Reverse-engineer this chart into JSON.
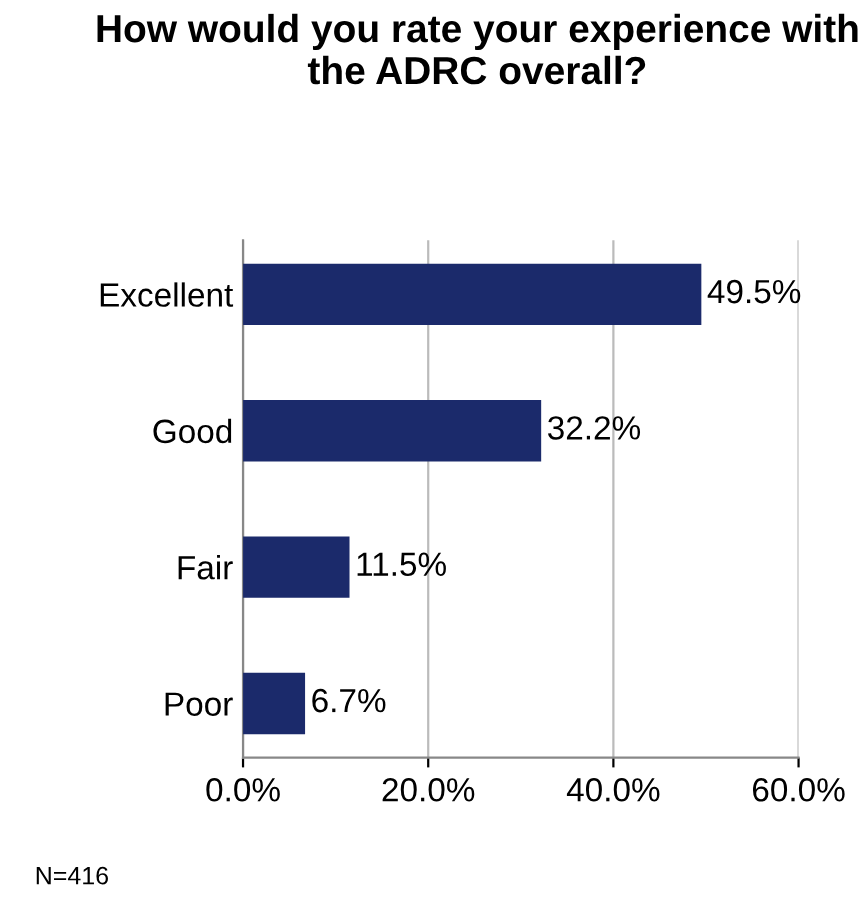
{
  "chart_data": {
    "type": "bar",
    "orientation": "horizontal",
    "title": "How would you rate your experience with the ADRC overall?",
    "categories": [
      "Excellent",
      "Good",
      "Fair",
      "Poor"
    ],
    "values": [
      49.5,
      32.2,
      11.5,
      6.7
    ],
    "value_labels": [
      "49.5%",
      "32.2%",
      "11.5%",
      "6.7%"
    ],
    "color": "#1b2a6b",
    "xlim": [
      0,
      60
    ],
    "xticks": [
      {
        "value": 0,
        "label": "0.0%"
      },
      {
        "value": 20,
        "label": "20.0%"
      },
      {
        "value": 40,
        "label": "40.0%"
      },
      {
        "value": 60,
        "label": "60.0%"
      }
    ],
    "grid": "x",
    "annotations": [
      "N=416"
    ]
  }
}
